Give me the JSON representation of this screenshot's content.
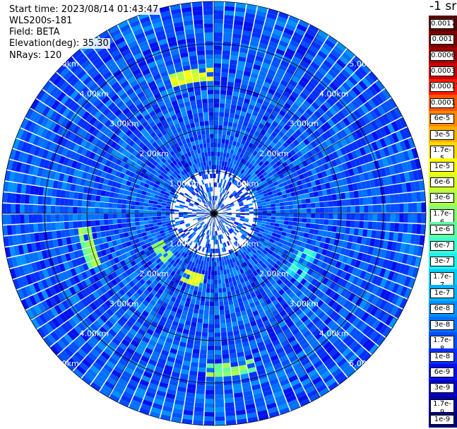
{
  "header": {
    "start_time": "Start time: 2023/08/14 01:43:47",
    "instrument": "WLS200s-181",
    "field": "Field: BETA",
    "elevation": "Elevation(deg): 35.30",
    "nrays": "NRays: 120"
  },
  "colorbar": {
    "unit_label": "-1 sr",
    "levels": [
      "0.0017",
      "0.001",
      "0.0006",
      "0.0003",
      "0.00017",
      "0.0001",
      "6e-5",
      "3e-5",
      "1.7e-5",
      "1e-5",
      "6e-6",
      "3e-6",
      "1.7e-6",
      "1e-6",
      "6e-7",
      "3e-7",
      "1.7e-7",
      "1e-7",
      "6e-8",
      "3e-8",
      "1.7e-8",
      "1e-8",
      "6e-9",
      "3e-9",
      "1.7e-9",
      "1e-9"
    ],
    "colors": [
      "#5a0000",
      "#7a0000",
      "#a00000",
      "#c80000",
      "#ff1a00",
      "#ff5500",
      "#ff8800",
      "#ffb000",
      "#ffd800",
      "#ffff00",
      "#d8ff20",
      "#b0ff48",
      "#88ff70",
      "#60ffa0",
      "#40ffd0",
      "#20f0f0",
      "#00d0ff",
      "#00b0ff",
      "#0090ff",
      "#0070ff",
      "#0050ff",
      "#0030ff",
      "#0010ee",
      "#0000c8",
      "#0000a0",
      "#000078"
    ]
  },
  "chart_data": {
    "type": "ppi",
    "field": "BETA",
    "nrays": 120,
    "elevation_deg": 35.3,
    "range_rings_km": [
      1.0,
      2.0,
      3.0,
      4.0,
      5.0
    ],
    "ring_labels": [
      "1.00km",
      "2.00km",
      "3.00km",
      "4.00km",
      "5.00km"
    ],
    "max_range_km": 5.0,
    "spoke_angles_deg": [
      0,
      30,
      60,
      90,
      120,
      150,
      180,
      210,
      240,
      270,
      300,
      330
    ],
    "dominant_level": "1.7e-8",
    "high_patches": [
      {
        "azimuth_deg": 350,
        "range_km": 3.3,
        "level": "1e-5"
      },
      {
        "azimuth_deg": 198,
        "range_km": 1.6,
        "level": "1e-5"
      },
      {
        "azimuth_deg": 235,
        "range_km": 1.5,
        "level": "3e-6"
      },
      {
        "azimuth_deg": 255,
        "range_km": 3.1,
        "level": "3e-6"
      },
      {
        "azimuth_deg": 175,
        "range_km": 3.7,
        "level": "3e-6"
      },
      {
        "azimuth_deg": 120,
        "range_km": 2.4,
        "level": "6e-7"
      }
    ]
  }
}
